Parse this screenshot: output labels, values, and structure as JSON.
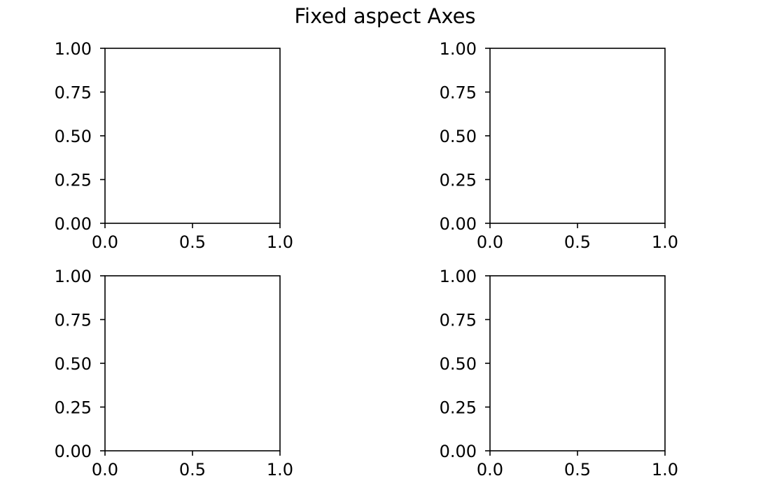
{
  "figure": {
    "title": "Fixed aspect Axes"
  },
  "chart_data": [
    {
      "type": "scatter",
      "xlim": [
        0.0,
        1.0
      ],
      "ylim": [
        0.0,
        1.0
      ],
      "x_ticks": [
        "0.0",
        "0.5",
        "1.0"
      ],
      "y_ticks": [
        "0.00",
        "0.25",
        "0.50",
        "0.75",
        "1.00"
      ],
      "series": [],
      "grid": false
    },
    {
      "type": "scatter",
      "xlim": [
        0.0,
        1.0
      ],
      "ylim": [
        0.0,
        1.0
      ],
      "x_ticks": [
        "0.0",
        "0.5",
        "1.0"
      ],
      "y_ticks": [
        "0.00",
        "0.25",
        "0.50",
        "0.75",
        "1.00"
      ],
      "series": [],
      "grid": false
    },
    {
      "type": "scatter",
      "xlim": [
        0.0,
        1.0
      ],
      "ylim": [
        0.0,
        1.0
      ],
      "x_ticks": [
        "0.0",
        "0.5",
        "1.0"
      ],
      "y_ticks": [
        "0.00",
        "0.25",
        "0.50",
        "0.75",
        "1.00"
      ],
      "series": [],
      "grid": false
    },
    {
      "type": "scatter",
      "xlim": [
        0.0,
        1.0
      ],
      "ylim": [
        0.0,
        1.0
      ],
      "x_ticks": [
        "0.0",
        "0.5",
        "1.0"
      ],
      "y_ticks": [
        "0.00",
        "0.25",
        "0.50",
        "0.75",
        "1.00"
      ],
      "series": [],
      "grid": false
    }
  ]
}
